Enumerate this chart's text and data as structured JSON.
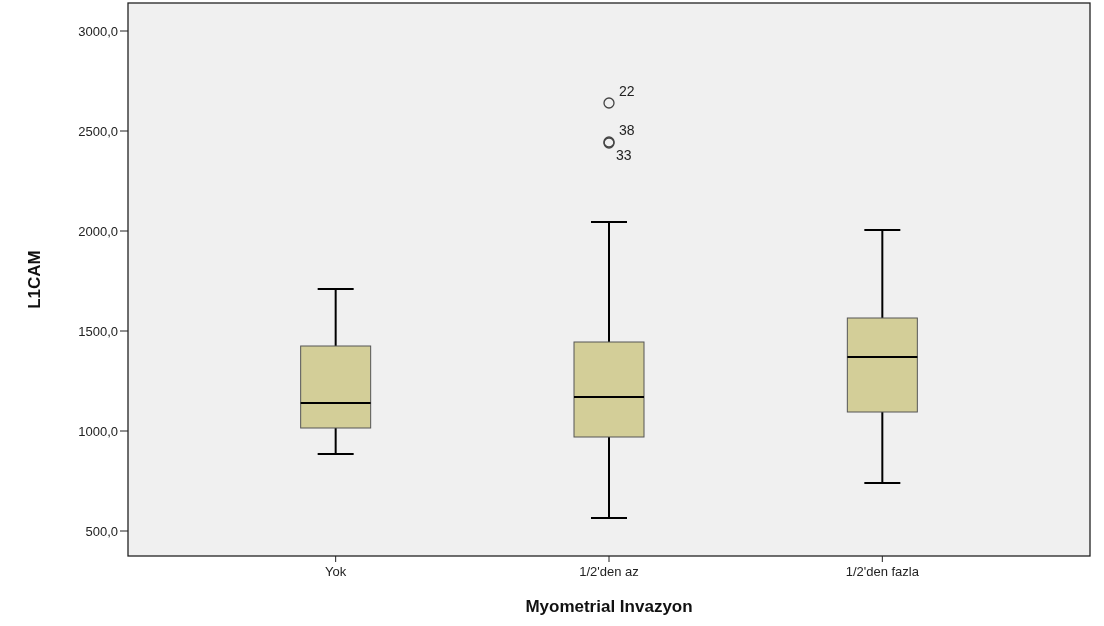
{
  "chart_data": {
    "type": "box",
    "xlabel": "Myometrial Invazyon",
    "ylabel": "L1CAM",
    "categories": [
      "Yok",
      "1/2'den az",
      "1/2'den fazla"
    ],
    "boxes": [
      {
        "low": 885,
        "q1": 1015,
        "median": 1140,
        "q3": 1425,
        "high": 1710
      },
      {
        "low": 565,
        "q1": 970,
        "median": 1170,
        "q3": 1445,
        "high": 2045,
        "outliers": [
          2640,
          2445,
          2440
        ]
      },
      {
        "low": 740,
        "q1": 1095,
        "median": 1370,
        "q3": 1565,
        "high": 2005
      }
    ],
    "color": "#d3ce98",
    "marker": "circle",
    "ylim": [
      375,
      3140
    ],
    "yticks": [
      {
        "value": 500,
        "label": "500,0"
      },
      {
        "value": 1000,
        "label": "1000,0"
      },
      {
        "value": 1500,
        "label": "1500,0"
      },
      {
        "value": 2000,
        "label": "2000,0"
      },
      {
        "value": 2500,
        "label": "2500,0"
      },
      {
        "value": 3000,
        "label": "3000,0"
      }
    ],
    "annotations": [
      "22",
      "38",
      "33"
    ]
  }
}
